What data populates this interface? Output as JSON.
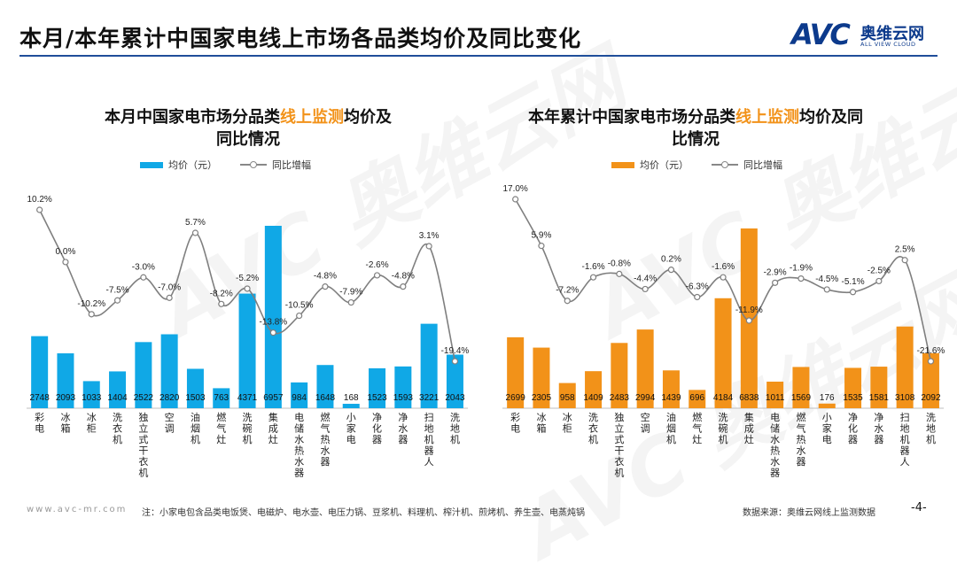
{
  "page": {
    "title": "本月/本年累计中国家电线上市场各品类均价及同比变化",
    "logo_mark": "AVC",
    "logo_cn": "奥维云网",
    "logo_en": "ALL VIEW CLOUD",
    "footer_url": "www.avc-mr.com",
    "footer_note": "注：小家电包含品类电饭煲、电磁炉、电水壶、电压力锅、豆浆机、料理机、榨汁机、煎烤机、养生壶、电蒸炖锅",
    "footer_source": "数据来源：奥维云网线上监测数据",
    "page_number": "-4-",
    "watermark": "AVC 奥维云网"
  },
  "chart_data": [
    {
      "type": "bar",
      "title_pre": "本月中国家电市场分品类",
      "title_hl": "线上监测",
      "title_post": "均价及",
      "title_line2": "同比情况",
      "legend_bar": "均价（元）",
      "legend_line": "同比增幅",
      "bar_color": "#10a8e6",
      "line_color": "#7f7f7f",
      "categories": [
        "彩电",
        "冰箱",
        "冰柜",
        "洗衣机",
        "独立式干衣机",
        "空调",
        "油烟机",
        "燃气灶",
        "洗碗机",
        "集成灶",
        "电储水热水器",
        "燃气热水器",
        "小家电",
        "净化器",
        "净水器",
        "扫地机器人",
        "洗地机"
      ],
      "values": [
        2748,
        2093,
        1033,
        1404,
        2522,
        2820,
        1503,
        763,
        4371,
        6957,
        984,
        1648,
        168,
        1523,
        1593,
        3221,
        2043
      ],
      "growth_labels": [
        "10.2%",
        "0.0%",
        "-10.2%",
        "-7.5%",
        "-3.0%",
        "-7.0%",
        "5.7%",
        "-8.2%",
        "-5.2%",
        "-13.8%",
        "-10.5%",
        "-4.8%",
        "-7.9%",
        "-2.6%",
        "-4.8%",
        "3.1%",
        "-19.4%"
      ],
      "growth": [
        10.2,
        0.0,
        -10.2,
        -7.5,
        -3.0,
        -7.0,
        5.7,
        -8.2,
        -5.2,
        -13.8,
        -10.5,
        -4.8,
        -7.9,
        -2.6,
        -4.8,
        3.1,
        -19.4
      ],
      "ylim_bar": [
        0,
        7500
      ],
      "ylim_line": [
        -27,
        14
      ]
    },
    {
      "type": "bar",
      "title_pre": "本年累计中国家电市场分品类",
      "title_hl": "线上监测",
      "title_post": "均价及同",
      "title_line2": "比情况",
      "legend_bar": "均价（元）",
      "legend_line": "同比增幅",
      "bar_color": "#f29219",
      "line_color": "#7f7f7f",
      "categories": [
        "彩电",
        "冰箱",
        "冰柜",
        "洗衣机",
        "独立式干衣机",
        "空调",
        "油烟机",
        "燃气灶",
        "洗碗机",
        "集成灶",
        "电储水热水器",
        "燃气热水器",
        "小家电",
        "净化器",
        "净水器",
        "扫地机器人",
        "洗地机"
      ],
      "values": [
        2699,
        2305,
        958,
        1409,
        2483,
        2994,
        1439,
        696,
        4184,
        6838,
        1011,
        1569,
        176,
        1535,
        1581,
        3108,
        2092
      ],
      "growth_labels": [
        "17.0%",
        "5.9%",
        "-7.2%",
        "-1.6%",
        "-0.8%",
        "-4.4%",
        "0.2%",
        "-6.3%",
        "-1.6%",
        "-11.9%",
        "-2.9%",
        "-1.9%",
        "-4.5%",
        "-5.1%",
        "-2.5%",
        "2.5%",
        "-21.6%"
      ],
      "growth": [
        17.0,
        5.9,
        -7.2,
        -1.6,
        -0.8,
        -4.4,
        0.2,
        -6.3,
        -1.6,
        -11.9,
        -2.9,
        -1.9,
        -4.5,
        -5.1,
        -2.5,
        2.5,
        -21.6
      ],
      "ylim_bar": [
        0,
        7400
      ],
      "ylim_line": [
        -27,
        20
      ]
    }
  ]
}
